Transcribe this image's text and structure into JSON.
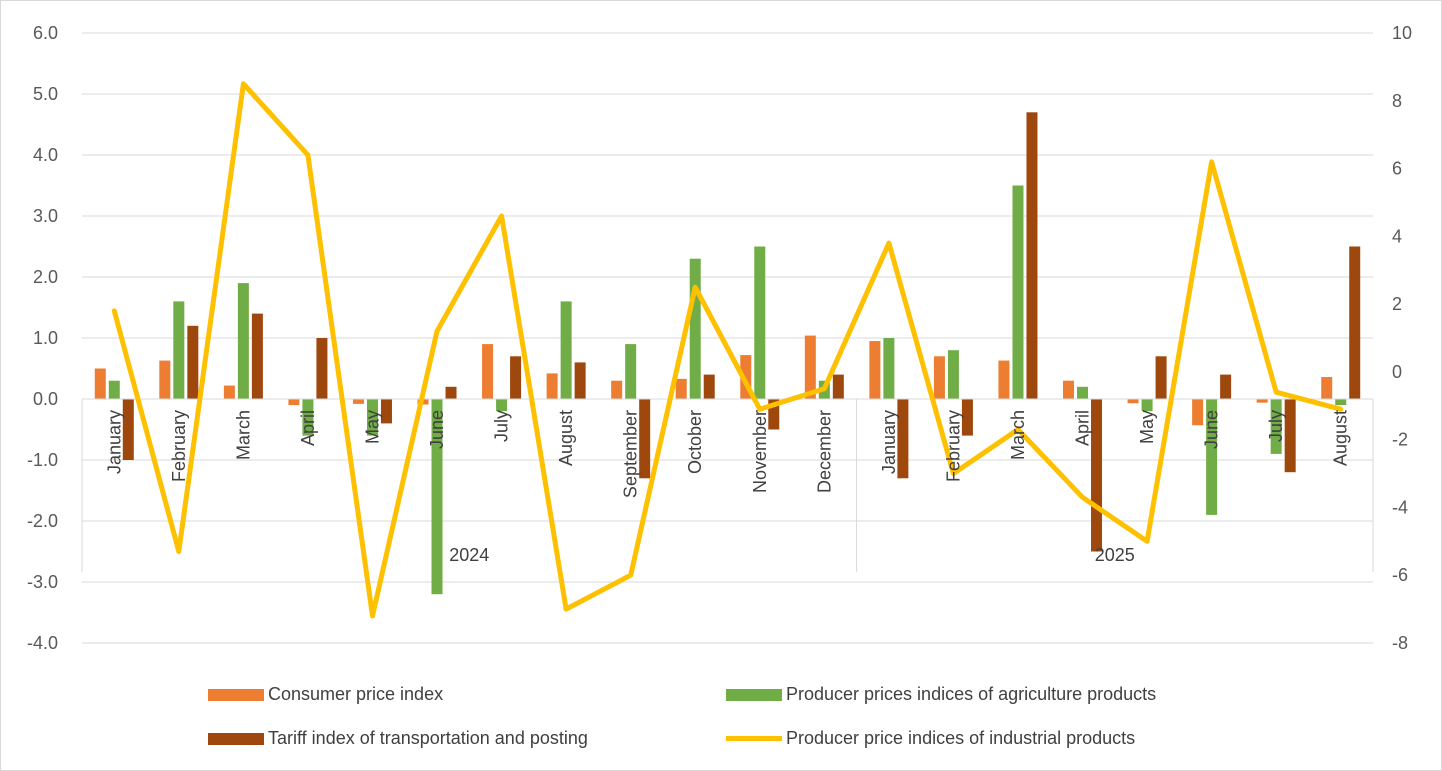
{
  "chart_data": {
    "type": "bar",
    "title": "",
    "categories": [
      "January",
      "February",
      "March",
      "April",
      "May",
      "June",
      "July",
      "August",
      "September",
      "October",
      "November",
      "December",
      "January",
      "February",
      "March",
      "April",
      "May",
      "June",
      "July",
      "August"
    ],
    "groups": [
      {
        "label": "2024",
        "from": 0,
        "to": 11
      },
      {
        "label": "2025",
        "from": 12,
        "to": 19
      }
    ],
    "y_left": {
      "min": -4,
      "max": 6,
      "ticks": [
        "6.0",
        "5.0",
        "4.0",
        "3.0",
        "2.0",
        "1.0",
        "0.0",
        "-1.0",
        "-2.0",
        "-3.0",
        "-4.0"
      ]
    },
    "y_right": {
      "min": -8,
      "max": 10,
      "ticks": [
        "10",
        "8",
        "6",
        "4",
        "2",
        "0",
        "-2",
        "-4",
        "-6",
        "-8"
      ]
    },
    "series": [
      {
        "name": "Consumer price index",
        "type": "bar",
        "axis": "left",
        "color": "#ED7D31",
        "values": [
          0.5,
          0.63,
          0.22,
          -0.1,
          -0.08,
          -0.09,
          0.9,
          0.42,
          0.3,
          0.33,
          0.72,
          1.04,
          0.95,
          0.7,
          0.63,
          0.3,
          -0.07,
          -0.43,
          -0.06,
          0.36
        ]
      },
      {
        "name": "Producer prices indices of agriculture products",
        "type": "bar",
        "axis": "left",
        "color": "#70AD47",
        "values": [
          0.3,
          1.6,
          1.9,
          -0.6,
          -0.6,
          -3.2,
          -0.2,
          1.6,
          0.9,
          2.3,
          2.5,
          0.3,
          1.0,
          0.8,
          3.5,
          0.2,
          -0.2,
          -1.9,
          -0.9,
          -0.1
        ]
      },
      {
        "name": "Tariff index of transportation and posting",
        "type": "bar",
        "axis": "left",
        "color": "#9E480E",
        "values": [
          -1.0,
          1.2,
          1.4,
          1.0,
          -0.4,
          0.2,
          0.7,
          0.6,
          -1.3,
          0.4,
          -0.5,
          0.4,
          -1.3,
          -0.6,
          4.7,
          -2.5,
          0.7,
          0.4,
          -1.2,
          2.5
        ]
      },
      {
        "name": "Producer price indices of industrial products",
        "type": "line",
        "axis": "right",
        "color": "#FFC000",
        "values": [
          1.8,
          -5.3,
          8.5,
          6.4,
          -7.2,
          1.2,
          4.6,
          -7.0,
          -6.0,
          2.5,
          -1.1,
          -0.5,
          3.8,
          -3.0,
          -1.7,
          -3.7,
          -5.0,
          6.2,
          -0.6,
          -1.1
        ]
      }
    ],
    "legend_position": "bottom",
    "grid": true
  }
}
